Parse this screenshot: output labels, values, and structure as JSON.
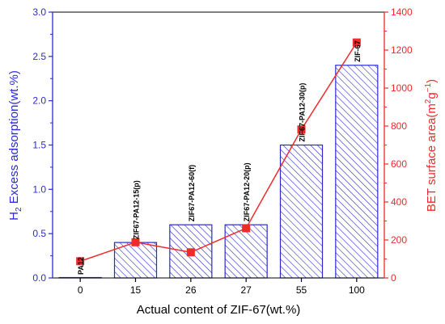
{
  "chart_data": {
    "type": "bar+line",
    "categories": [
      "0",
      "15",
      "26",
      "27",
      "55",
      "100"
    ],
    "bar_labels": [
      "PA12",
      "ZIF67-PA12-15(p)",
      "ZIF67-PA12-60(f)",
      "ZIF67-PA12-20(p)",
      "ZIF67-PA12-30(p)",
      "ZIF-67"
    ],
    "xlabel": "Actual content of ZIF-67(wt.%)",
    "ylabel_left": {
      "main": "H",
      "sub": "2",
      "rest": " Excess adsorption(wt.%)"
    },
    "ylabel_right": {
      "main": "BET surface area(m",
      "sup1": "2",
      "mid": "g",
      "sup2": "−1",
      "end": ")"
    },
    "ylim_left": [
      0,
      3.0
    ],
    "ylim_right": [
      0,
      1400
    ],
    "left_ticks": [
      "0.0",
      "0.5",
      "1.0",
      "1.5",
      "2.0",
      "2.5",
      "3.0"
    ],
    "right_ticks": [
      "0",
      "200",
      "400",
      "600",
      "800",
      "1000",
      "1200",
      "1400"
    ],
    "series": [
      {
        "axis": "left",
        "type": "bar",
        "values": [
          0.0,
          0.4,
          0.6,
          0.6,
          1.5,
          2.4
        ]
      },
      {
        "axis": "right",
        "type": "line",
        "values": [
          88,
          188,
          135,
          262,
          782,
          1240
        ]
      }
    ],
    "colors": {
      "left_axis": "#2a2ad6",
      "right_axis": "#ee2a2a",
      "bar_hatch": "#2a2acc",
      "frame": "#000000"
    }
  }
}
